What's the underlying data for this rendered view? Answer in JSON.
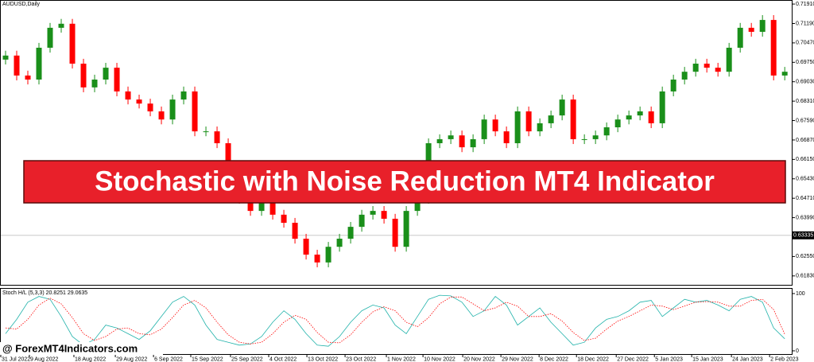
{
  "banner": "Stochastic with Noise Reduction MT4 Indicator",
  "watermark": "@ ForexMT4Indicators.com",
  "chart_data": [
    {
      "type": "candlestick",
      "title": "AUDUSD,Daily",
      "up_color": "#1a8f1a",
      "down_color": "#ff0000",
      "open": [
        0.6985,
        0.7,
        0.6926,
        0.6911,
        0.7029,
        0.7103,
        0.7118,
        0.697,
        0.6882,
        0.6911,
        0.6955,
        0.6867,
        0.6837,
        0.6822,
        0.6793,
        0.6763,
        0.6837,
        0.6867,
        0.6719,
        0.6719,
        0.6675,
        0.6572,
        0.6469,
        0.6424,
        0.6454,
        0.641,
        0.638,
        0.6321,
        0.6262,
        0.6233,
        0.6291,
        0.6321,
        0.6365,
        0.641,
        0.6424,
        0.6395,
        0.6291,
        0.6424,
        0.6469,
        0.6675,
        0.669,
        0.6704,
        0.666,
        0.669,
        0.6763,
        0.6719,
        0.6675,
        0.6793,
        0.6719,
        0.6749,
        0.6778,
        0.6837,
        0.669,
        0.669,
        0.6704,
        0.6734,
        0.6763,
        0.6778,
        0.6793,
        0.6749,
        0.6867,
        0.6911,
        0.694,
        0.697,
        0.6955,
        0.694,
        0.7029,
        0.7103,
        0.7088,
        0.7132,
        0.6926
      ],
      "high": [
        0.7018,
        0.7018,
        0.6944,
        0.7047,
        0.7121,
        0.7136,
        0.7136,
        0.6988,
        0.6929,
        0.6973,
        0.6973,
        0.6885,
        0.6855,
        0.684,
        0.6811,
        0.6855,
        0.6885,
        0.6885,
        0.6737,
        0.6737,
        0.6693,
        0.659,
        0.6487,
        0.6472,
        0.6472,
        0.6428,
        0.6398,
        0.6339,
        0.628,
        0.6309,
        0.6339,
        0.6383,
        0.6428,
        0.6442,
        0.6442,
        0.6413,
        0.6442,
        0.6487,
        0.6693,
        0.6708,
        0.6722,
        0.6722,
        0.6708,
        0.6781,
        0.6781,
        0.6737,
        0.6811,
        0.6811,
        0.6767,
        0.6796,
        0.6855,
        0.6855,
        0.6708,
        0.6722,
        0.6752,
        0.6781,
        0.6796,
        0.6811,
        0.6811,
        0.6885,
        0.6929,
        0.6958,
        0.6988,
        0.6988,
        0.6973,
        0.7047,
        0.7121,
        0.7121,
        0.715,
        0.715,
        0.6958
      ],
      "low": [
        0.6967,
        0.6908,
        0.6893,
        0.6893,
        0.7011,
        0.7085,
        0.6952,
        0.6864,
        0.6864,
        0.6893,
        0.6849,
        0.6819,
        0.6804,
        0.6775,
        0.6745,
        0.6745,
        0.6819,
        0.6701,
        0.6701,
        0.6657,
        0.6554,
        0.6451,
        0.6406,
        0.6406,
        0.6392,
        0.6362,
        0.6303,
        0.6244,
        0.6215,
        0.6215,
        0.6273,
        0.6303,
        0.6347,
        0.6392,
        0.6377,
        0.6273,
        0.6273,
        0.6406,
        0.6451,
        0.6657,
        0.6672,
        0.6642,
        0.6642,
        0.6672,
        0.6701,
        0.6657,
        0.6657,
        0.6701,
        0.6701,
        0.6731,
        0.676,
        0.6672,
        0.6672,
        0.6672,
        0.6686,
        0.6716,
        0.6745,
        0.676,
        0.6731,
        0.6731,
        0.6849,
        0.6893,
        0.6922,
        0.6937,
        0.6922,
        0.6922,
        0.7011,
        0.707,
        0.707,
        0.6908,
        0.6908
      ],
      "close": [
        0.7,
        0.6926,
        0.6911,
        0.7029,
        0.7103,
        0.7118,
        0.697,
        0.6882,
        0.6911,
        0.6955,
        0.6867,
        0.6837,
        0.6822,
        0.6793,
        0.6763,
        0.6837,
        0.6867,
        0.6719,
        0.6719,
        0.6675,
        0.6572,
        0.6469,
        0.6424,
        0.6454,
        0.641,
        0.638,
        0.6321,
        0.6262,
        0.6233,
        0.6291,
        0.6321,
        0.6365,
        0.641,
        0.6424,
        0.6395,
        0.6291,
        0.6424,
        0.6469,
        0.6675,
        0.669,
        0.6704,
        0.666,
        0.669,
        0.6763,
        0.6719,
        0.6675,
        0.6793,
        0.6719,
        0.6749,
        0.6778,
        0.6837,
        0.669,
        0.669,
        0.6704,
        0.6734,
        0.6763,
        0.6778,
        0.6793,
        0.6749,
        0.6867,
        0.6911,
        0.694,
        0.697,
        0.6955,
        0.694,
        0.7029,
        0.7103,
        0.7088,
        0.7132,
        0.6926,
        0.694
      ],
      "ylim": [
        0.615,
        0.7206
      ],
      "yticks": [
        {
          "value": 0.7191,
          "label": "0.71910"
        },
        {
          "value": 0.7119,
          "label": "0.71190"
        },
        {
          "value": 0.7047,
          "label": "0.70470"
        },
        {
          "value": 0.6975,
          "label": "0.69750"
        },
        {
          "value": 0.6903,
          "label": "0.69030"
        },
        {
          "value": 0.6831,
          "label": "0.68310"
        },
        {
          "value": 0.6759,
          "label": "0.67590"
        },
        {
          "value": 0.6687,
          "label": "0.66870"
        },
        {
          "value": 0.6615,
          "label": "0.66150"
        },
        {
          "value": 0.6543,
          "label": "0.65430"
        },
        {
          "value": 0.6471,
          "label": "0.64710"
        },
        {
          "value": 0.6399,
          "label": "0.63990"
        },
        {
          "value": 0.6255,
          "label": "0.62550"
        },
        {
          "value": 0.6183,
          "label": "0.61830"
        }
      ],
      "current_price": {
        "value": 0.63335,
        "label": "0.63335"
      },
      "xlim": [
        0,
        71.2
      ],
      "xticks": [
        {
          "value": 0.07,
          "label": "31 Jul 2022"
        },
        {
          "value": 2.64,
          "label": "9 Aug 2022"
        },
        {
          "value": 6.64,
          "label": "18 Aug 2022"
        },
        {
          "value": 10.36,
          "label": "29 Aug 2022"
        },
        {
          "value": 13.79,
          "label": "6 Sep 2022"
        },
        {
          "value": 17.14,
          "label": "15 Sep 2022"
        },
        {
          "value": 20.71,
          "label": "25 Sep 2022"
        },
        {
          "value": 24.14,
          "label": "4 Oct 2022"
        },
        {
          "value": 27.57,
          "label": "13 Oct 2022"
        },
        {
          "value": 31.0,
          "label": "23 Oct 2022"
        },
        {
          "value": 34.71,
          "label": "1 Nov 2022"
        },
        {
          "value": 38.0,
          "label": "10 Nov 2022"
        },
        {
          "value": 41.57,
          "label": "20 Nov 2022"
        },
        {
          "value": 45.0,
          "label": "29 Nov 2022"
        },
        {
          "value": 48.43,
          "label": "8 Dec 2022"
        },
        {
          "value": 51.79,
          "label": "18 Dec 2022"
        },
        {
          "value": 55.36,
          "label": "27 Dec 2022"
        },
        {
          "value": 58.79,
          "label": "5 Jan 2023"
        },
        {
          "value": 62.14,
          "label": "15 Jan 2023"
        },
        {
          "value": 65.71,
          "label": "24 Jan 2023"
        },
        {
          "value": 69.14,
          "label": "2 Feb 2023"
        }
      ]
    },
    {
      "type": "line",
      "title": "Stoch H/L (5,3,3) 20.8251 29.0635",
      "series": [
        {
          "color": "#20b2aa",
          "style": "solid",
          "values": [
            30,
            55,
            85,
            95,
            90,
            60,
            25,
            10,
            20,
            45,
            40,
            30,
            20,
            35,
            60,
            85,
            95,
            80,
            45,
            20,
            15,
            10,
            12,
            25,
            50,
            70,
            55,
            30,
            10,
            8,
            25,
            50,
            70,
            80,
            75,
            45,
            30,
            60,
            90,
            97,
            96,
            85,
            60,
            70,
            95,
            80,
            45,
            60,
            75,
            50,
            30,
            10,
            15,
            40,
            55,
            60,
            70,
            85,
            88,
            60,
            75,
            90,
            85,
            88,
            80,
            70,
            90,
            95,
            85,
            40,
            21
          ]
        },
        {
          "color": "#ff0000",
          "style": "dotted",
          "values": [
            40,
            38,
            55,
            80,
            92,
            82,
            58,
            30,
            18,
            25,
            38,
            40,
            30,
            28,
            38,
            58,
            80,
            88,
            75,
            50,
            28,
            15,
            12,
            15,
            30,
            50,
            62,
            55,
            32,
            15,
            14,
            28,
            50,
            68,
            77,
            70,
            50,
            42,
            58,
            82,
            94,
            94,
            82,
            70,
            75,
            85,
            78,
            60,
            60,
            65,
            52,
            32,
            18,
            22,
            38,
            52,
            60,
            70,
            80,
            78,
            72,
            78,
            85,
            86,
            85,
            78,
            78,
            88,
            90,
            72,
            29
          ]
        }
      ],
      "ylim": [
        -5.6,
        108.3
      ],
      "yticks": [
        0,
        100
      ]
    }
  ]
}
